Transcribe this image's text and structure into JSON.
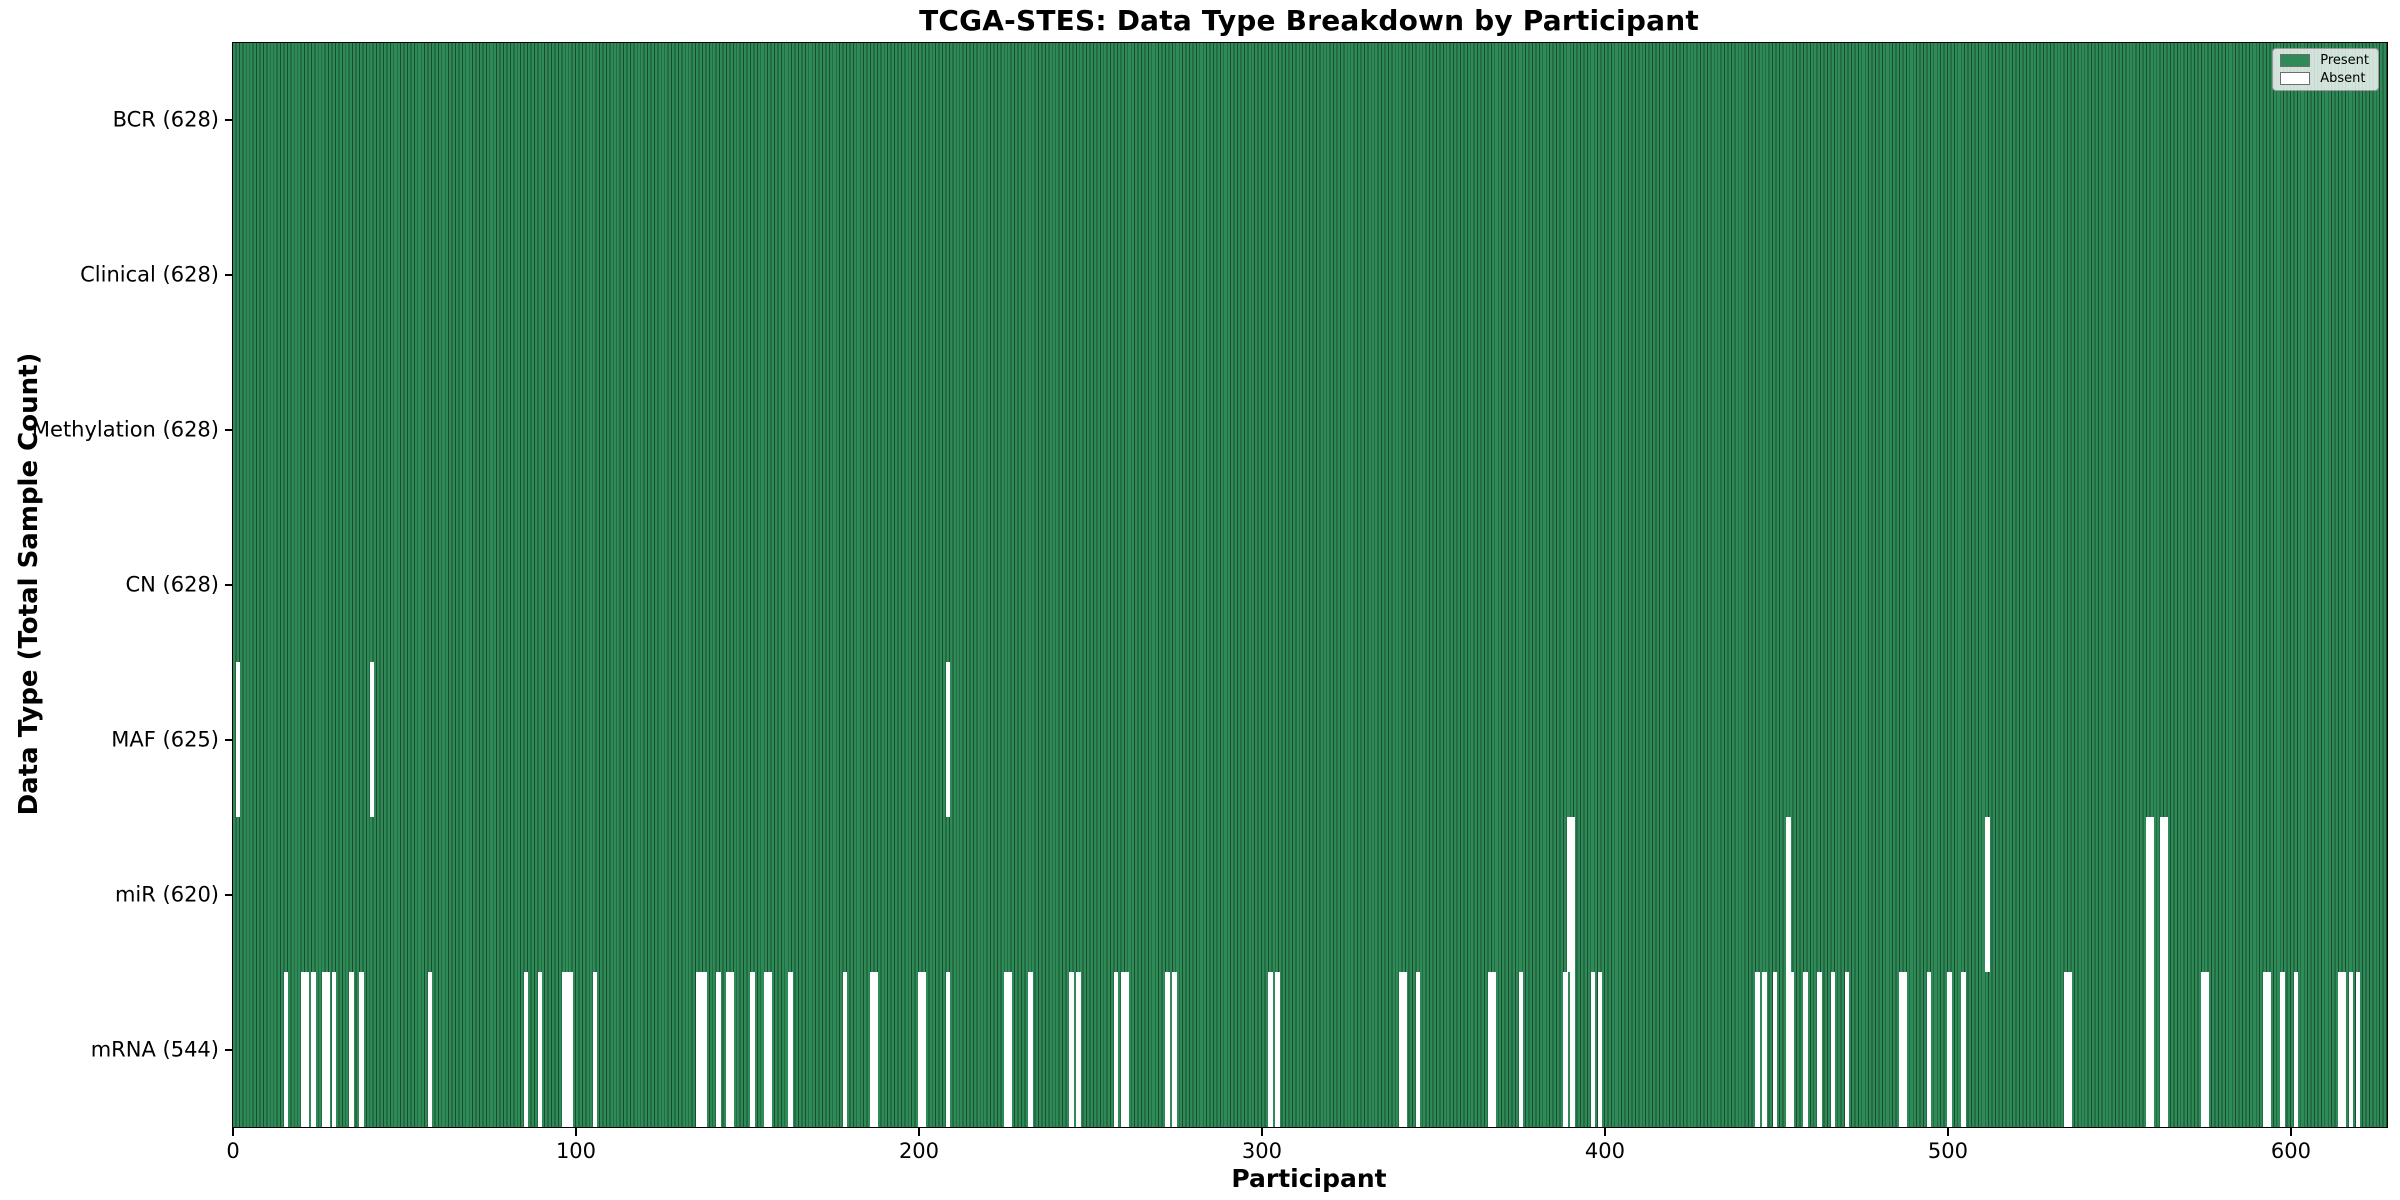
{
  "chart_data": {
    "type": "heatmap",
    "title": "TCGA-STES: Data Type Breakdown by Participant",
    "xlabel": "Participant",
    "ylabel": "Data Type (Total Sample Count)",
    "x_ticks": [
      0,
      100,
      200,
      300,
      400,
      500,
      600
    ],
    "x_max": 628,
    "total_participants": 628,
    "legend": {
      "present_label": "Present",
      "absent_label": "Absent",
      "position": "upper right"
    },
    "colors": {
      "present": "#2e8b57",
      "absent": "#ffffff",
      "bar_edge": "#1b4c30"
    },
    "rows": [
      {
        "key": "bcr",
        "label": "BCR (628)",
        "present_count": 628,
        "absent": []
      },
      {
        "key": "clinical",
        "label": "Clinical (628)",
        "present_count": 628,
        "absent": []
      },
      {
        "key": "methylation",
        "label": "Methylation (628)",
        "present_count": 628,
        "absent": []
      },
      {
        "key": "cn",
        "label": "CN (628)",
        "present_count": 628,
        "absent": []
      },
      {
        "key": "maf",
        "label": "MAF (625)",
        "present_count": 625,
        "absent": [
          1,
          40,
          208
        ]
      },
      {
        "key": "mir",
        "label": "miR (620)",
        "present_count": 620,
        "absent": [
          389,
          390,
          453,
          511,
          558,
          559,
          562,
          563
        ]
      },
      {
        "key": "mrna",
        "label": "mRNA (544)",
        "present_count": 544,
        "absent": [
          15,
          20,
          21,
          23,
          26,
          27,
          29,
          34,
          37,
          57,
          85,
          89,
          96,
          97,
          98,
          105,
          135,
          136,
          137,
          141,
          144,
          145,
          151,
          155,
          156,
          162,
          178,
          186,
          187,
          200,
          201,
          208,
          225,
          226,
          232,
          244,
          246,
          257,
          259,
          260,
          272,
          274,
          302,
          304,
          340,
          341,
          345,
          366,
          367,
          375,
          388,
          390,
          396,
          398,
          444,
          446,
          449,
          453,
          454,
          458,
          462,
          466,
          470,
          486,
          487,
          494,
          500,
          504,
          534,
          535,
          558,
          559,
          562,
          563,
          574,
          575,
          592,
          593,
          597,
          601,
          614,
          615,
          617,
          619
        ]
      }
    ]
  }
}
